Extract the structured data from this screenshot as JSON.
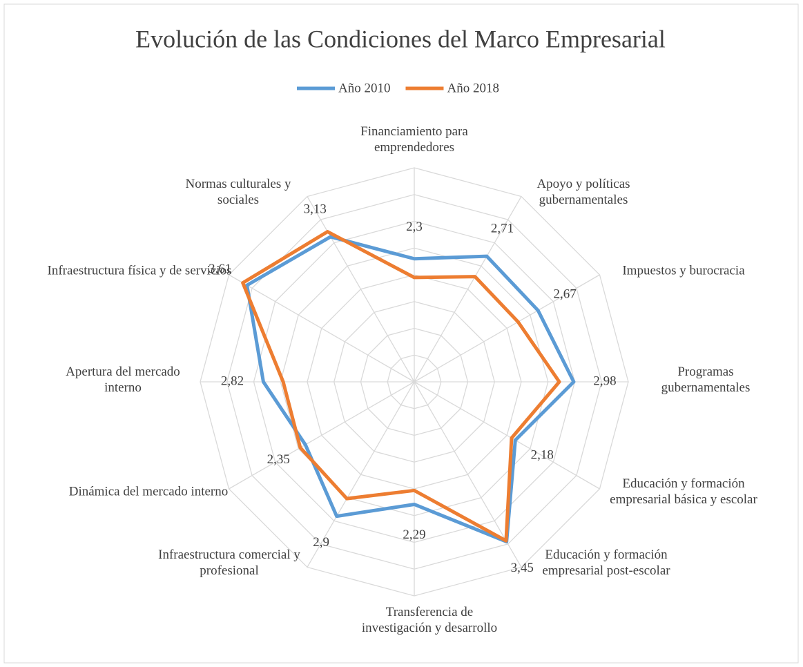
{
  "chart_data": {
    "type": "radar",
    "title": "Evolución de las Condiciones del Marco Empresarial",
    "categories": [
      "Financiamiento para emprendedores",
      "Apoyo y políticas gubernamentales",
      "Impuestos y burocracia",
      "Programas gubernamentales",
      "Educación y formación empresarial básica y escolar",
      "Educación y formación empresarial post-escolar",
      "Transferencia de investigación y desarrollo",
      "Infraestructura comercial y profesional",
      "Dinámica del mercado interno",
      "Apertura del mercado interno",
      "Infraestructura física y de servicios",
      "Normas culturales y sociales"
    ],
    "series": [
      {
        "name": "Año 2010",
        "color": "#5b9bd5",
        "values": [
          2.3,
          2.71,
          2.67,
          2.98,
          2.18,
          3.45,
          2.29,
          2.9,
          2.35,
          2.82,
          3.61,
          3.13
        ],
        "value_labels": [
          "2,3",
          "2,71",
          "2,67",
          "2,98",
          "2,18",
          "3,45",
          "2,29",
          "2,9",
          "2,35",
          "2,82",
          "3,61",
          "3,13"
        ]
      },
      {
        "name": "Año 2018",
        "color": "#ed7d31",
        "values": [
          1.95,
          2.27,
          2.24,
          2.71,
          2.1,
          3.43,
          2.03,
          2.52,
          2.46,
          2.45,
          3.7,
          3.24
        ]
      }
    ],
    "ylim": [
      0,
      4
    ],
    "yticks": [
      0,
      0.5,
      1,
      1.5,
      2,
      2.5,
      3,
      3.5,
      4
    ],
    "grid": true,
    "legend": "top"
  }
}
